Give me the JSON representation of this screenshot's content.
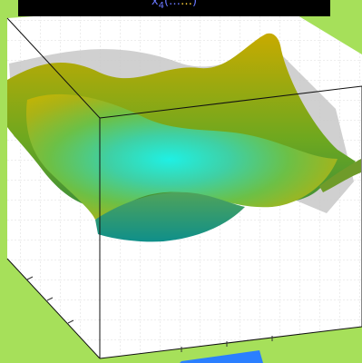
{
  "window": {
    "title": {
      "lead": "x",
      "subscript": "4",
      "open": "(…",
      "accent": "…",
      "close": ")"
    }
  },
  "colors": {
    "background": "#a6e05a",
    "axes_box": "#ffffff",
    "surface_high": "#b8a500",
    "surface_mid": "#4fc35a",
    "surface_low": "#1fe5e0",
    "title_text": "#6a78ff",
    "title_accent": "#ffd23a",
    "marker": "#2a7fff"
  },
  "plot": {
    "type": "3d-surface",
    "colormap": "summer-parula-like",
    "grid": true,
    "box": true
  }
}
